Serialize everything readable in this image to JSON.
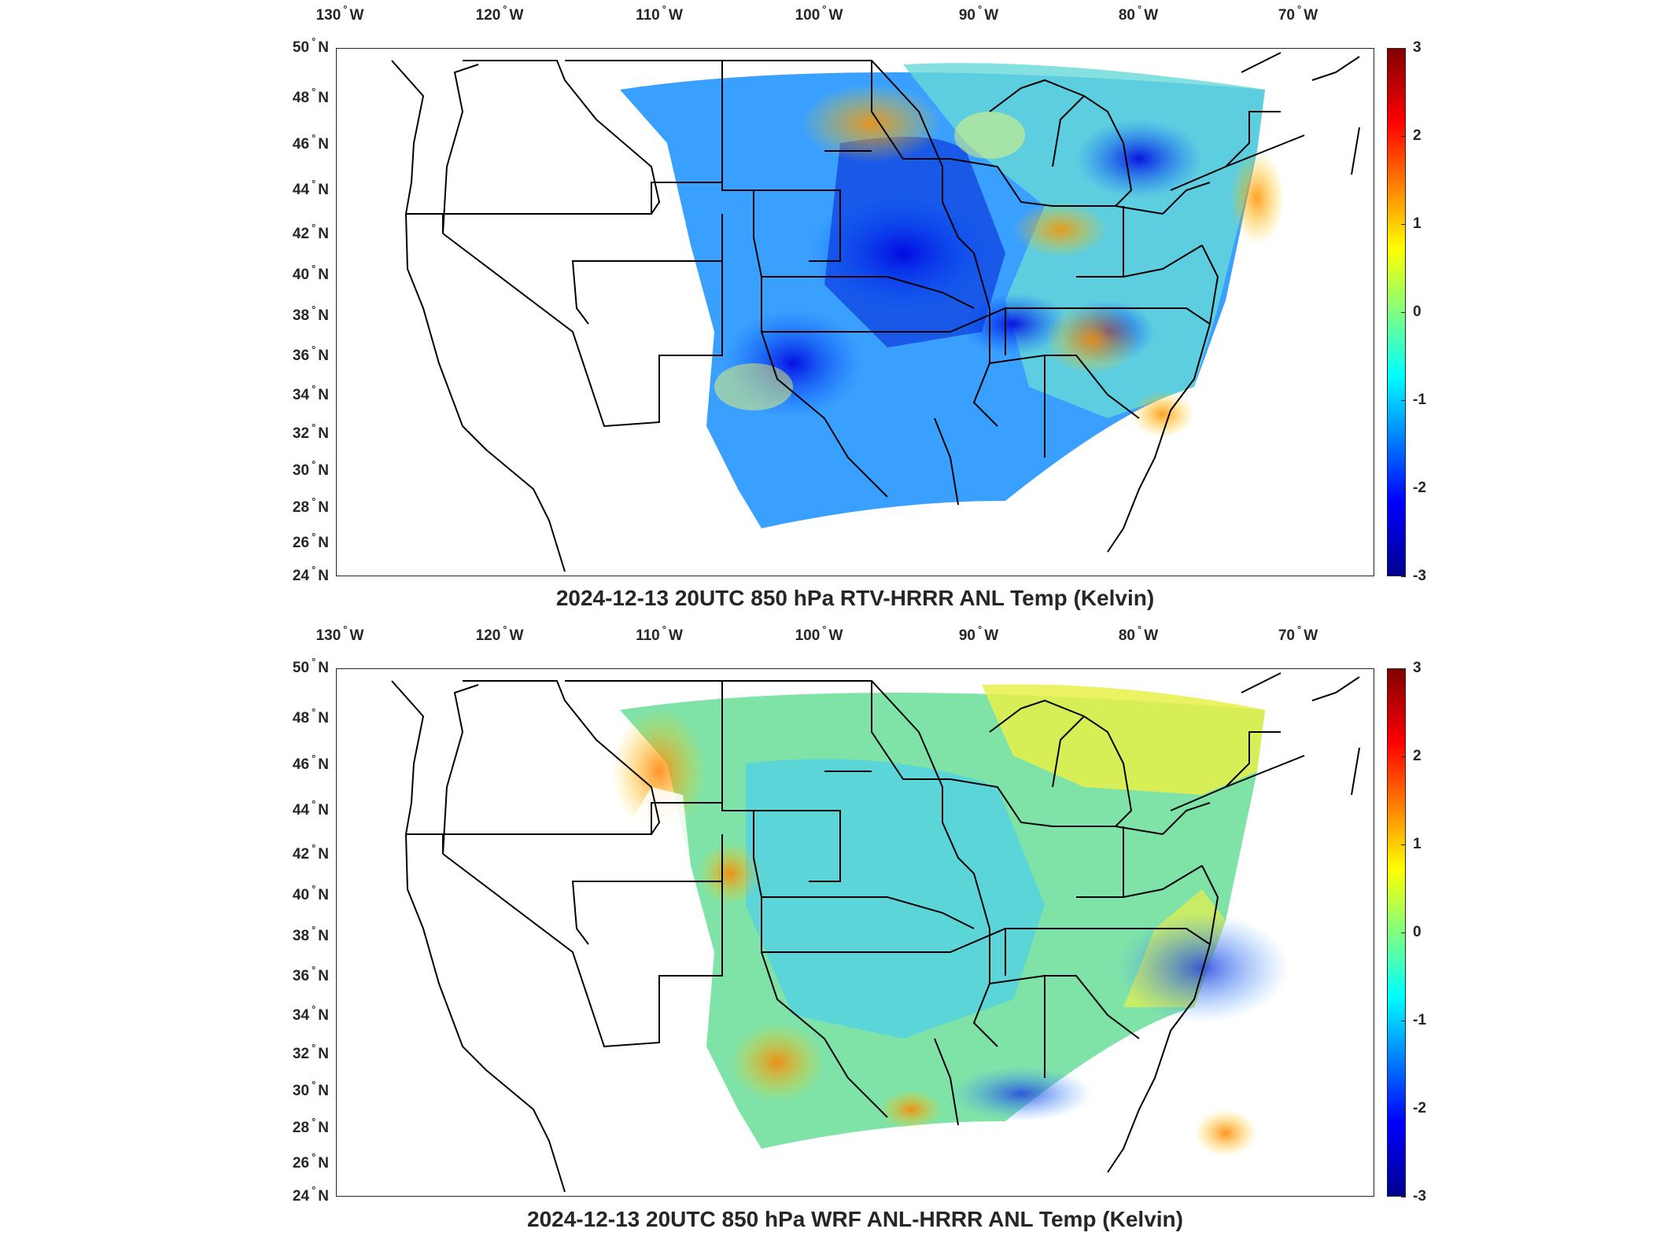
{
  "panels": [
    {
      "title": "2024-12-13 20UTC 850 hPa RTV-HRRR ANL Temp (Kelvin)"
    },
    {
      "title": "2024-12-13 20UTC 850 hPa WRF ANL-HRRR ANL Temp (Kelvin)"
    }
  ],
  "lon_labels": [
    "130",
    "120",
    "110",
    "100",
    "90",
    "80",
    "70"
  ],
  "lon_suffix": "W",
  "lat_labels": [
    "50",
    "48",
    "46",
    "44",
    "42",
    "40",
    "38",
    "36",
    "34",
    "32",
    "30",
    "28",
    "26",
    "24"
  ],
  "lat_suffix": "N",
  "colorbar": {
    "ticks": [
      "3",
      "2",
      "1",
      "0",
      "-1",
      "-2",
      "-3"
    ],
    "colormap": "jet",
    "range": [
      -3,
      3
    ]
  }
}
